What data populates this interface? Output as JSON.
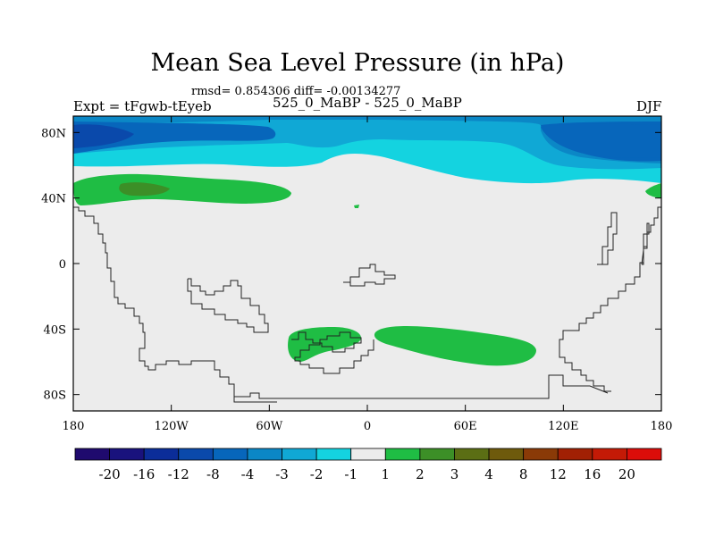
{
  "chart_data": {
    "type": "heatmap",
    "title": "Mean Sea Level Pressure (in hPa)",
    "subtitle": "rmsd= 0.854306 diff= -0.00134277",
    "left_label": "Expt = tFgwb-tEyeb",
    "center_label": "525_0_MaBP - 525_0_MaBP",
    "right_label": "DJF",
    "x_ticks": [
      "180",
      "120W",
      "60W",
      "0",
      "60E",
      "120E",
      "180"
    ],
    "y_ticks": [
      "80N",
      "40N",
      "0",
      "40S",
      "80S"
    ],
    "xlim": [
      -180,
      180
    ],
    "ylim": [
      -90,
      90
    ],
    "colorbar": {
      "labels": [
        "-20",
        "-16",
        "-12",
        "-8",
        "-4",
        "-3",
        "-2",
        "-1",
        "1",
        "2",
        "3",
        "4",
        "8",
        "12",
        "16",
        "20"
      ],
      "colors": [
        "#1f0a6e",
        "#19127d",
        "#0b2d99",
        "#0a49ab",
        "#0766bb",
        "#0b87c6",
        "#10a8d5",
        "#14d3e0",
        "#ececec",
        "#1fbd44",
        "#3c8f27",
        "#5b6e14",
        "#6e5a0c",
        "#8a3a07",
        "#a12004",
        "#c41a06",
        "#dc0d09"
      ]
    },
    "regions": {
      "north_polar_band": "-1 to -4 hPa",
      "northern_midlatitude_lobes": "1 to 3 hPa",
      "southern_midlatitude_lobes": "1 to 2 hPa",
      "background": "-1 to 1 hPa"
    }
  }
}
